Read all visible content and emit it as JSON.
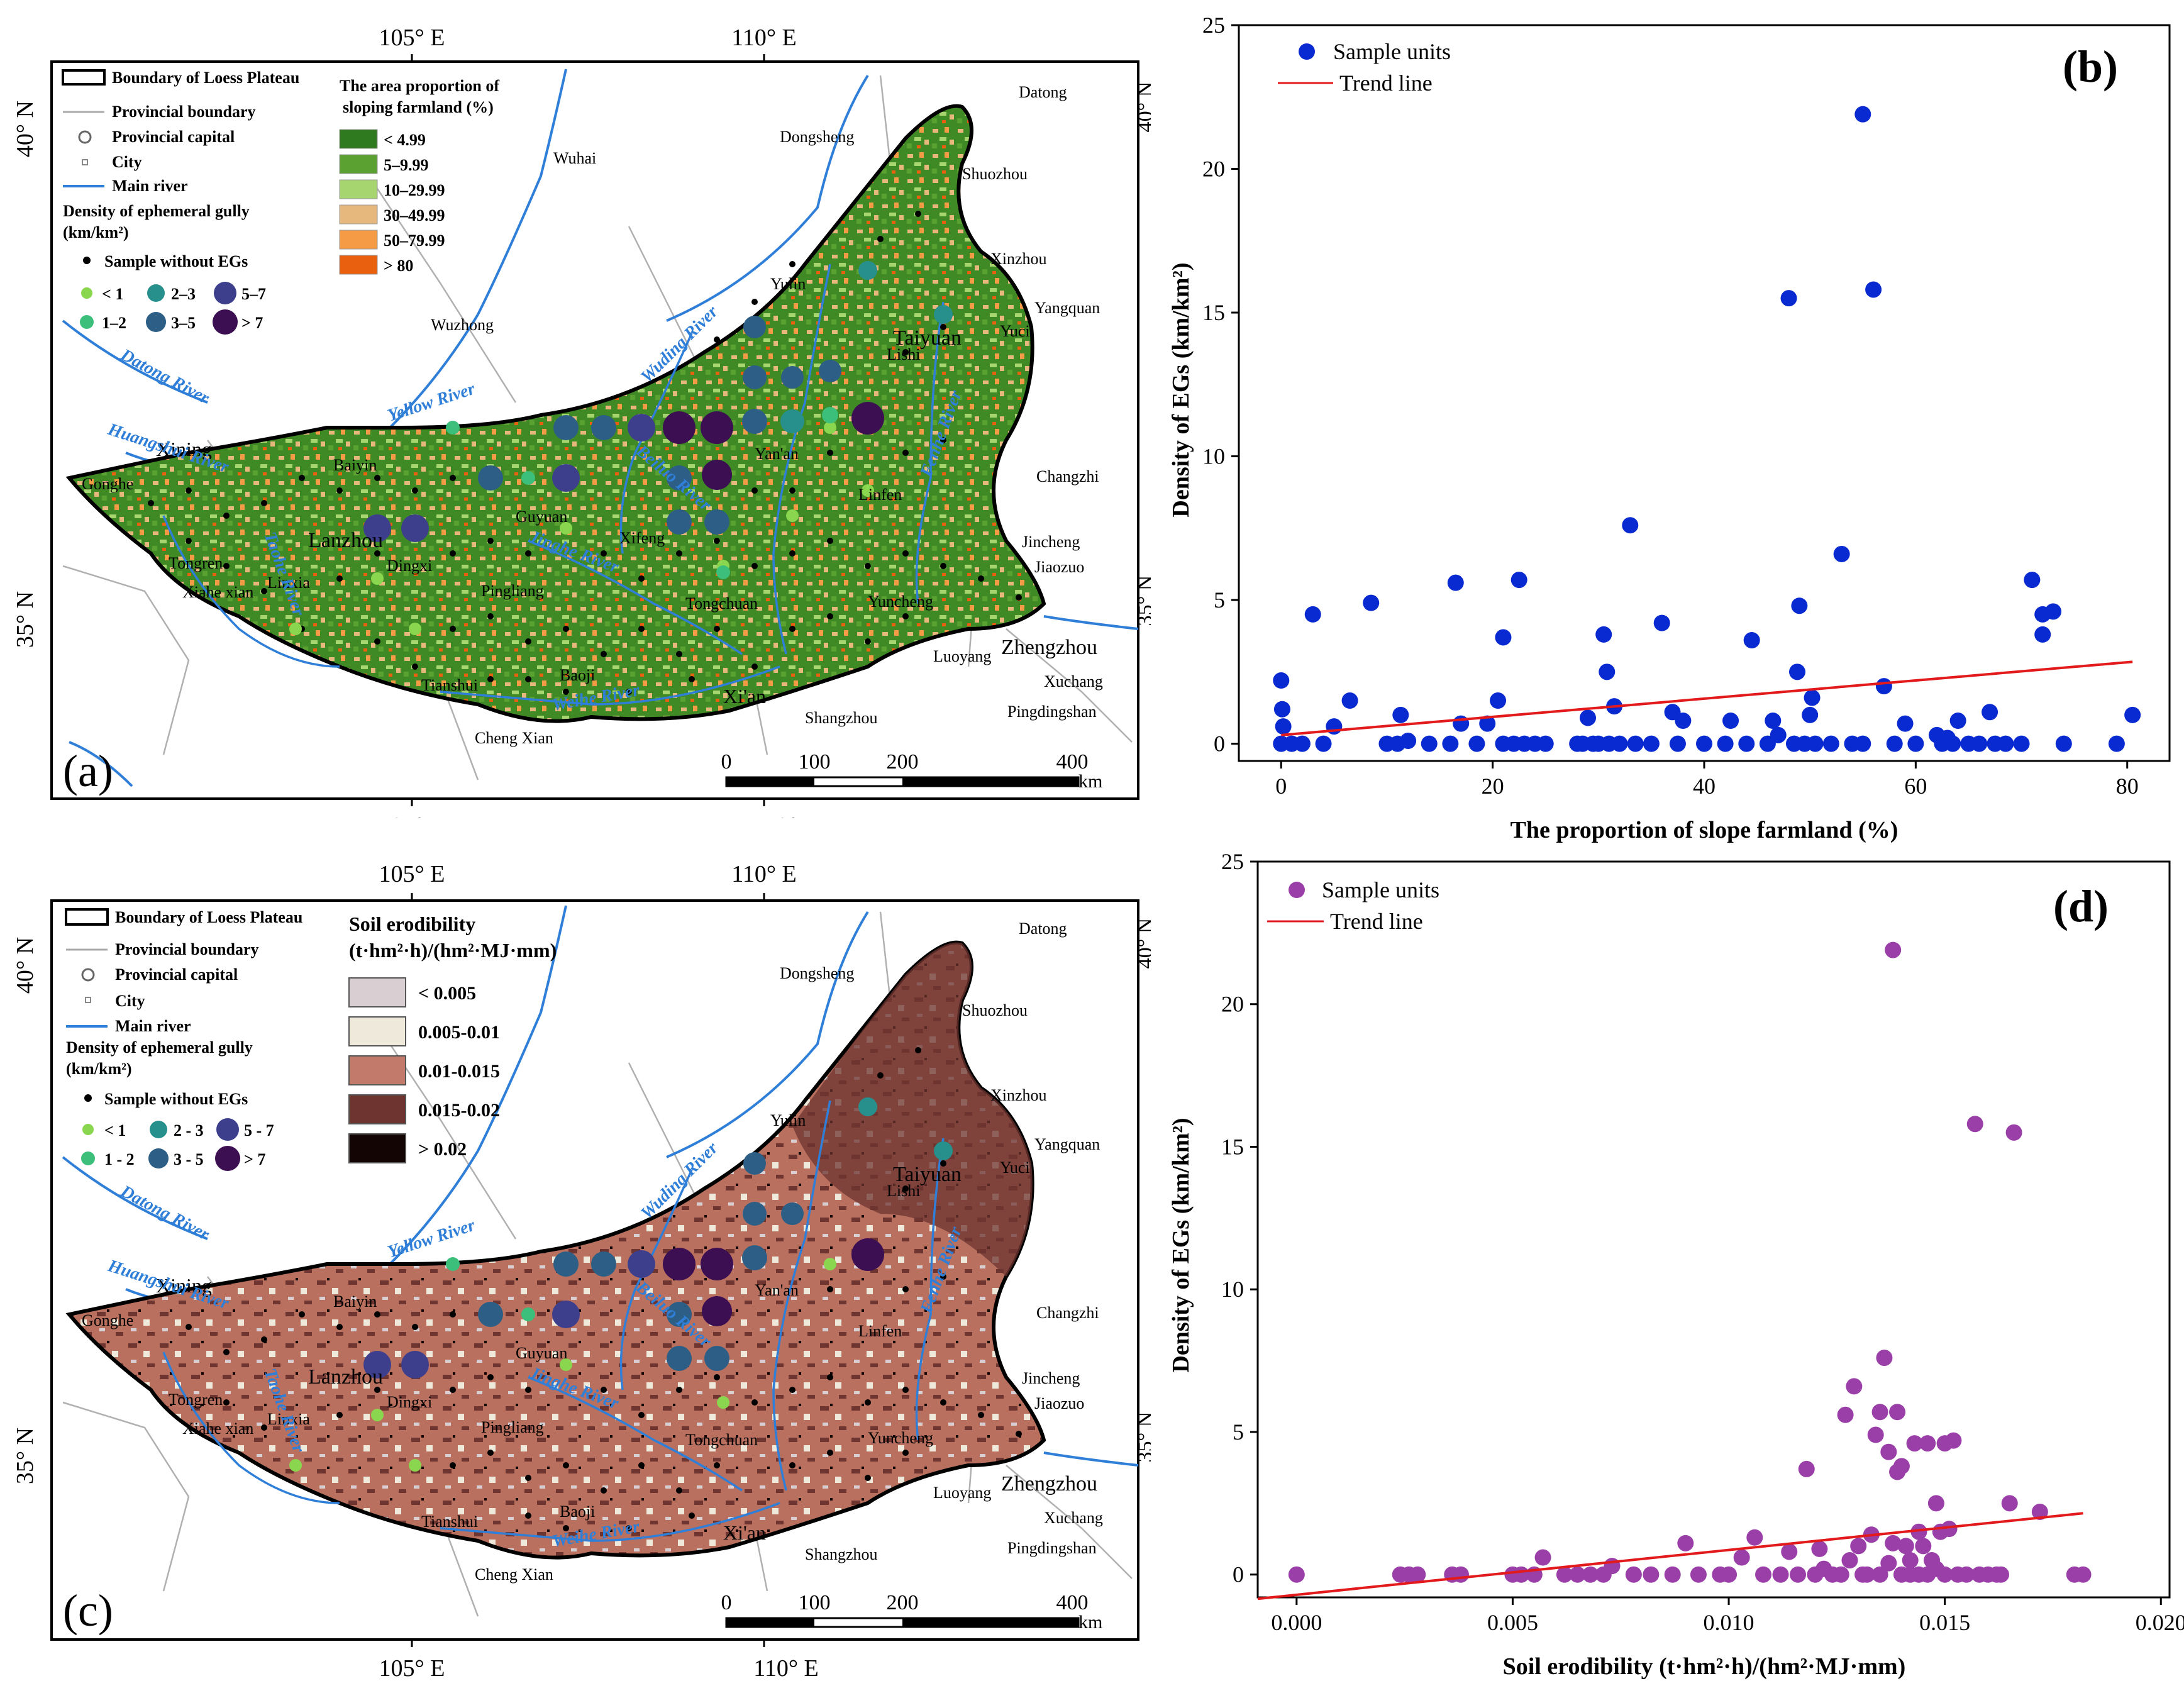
{
  "colors": {
    "green_dark": "#2f7a1f",
    "green_mid": "#5aa132",
    "green_light": "#a6d46f",
    "tan": "#e6b87e",
    "orange_light": "#f59a45",
    "orange": "#e9600f",
    "soil_0": "#d9cfd3",
    "soil_1": "#efe9db",
    "soil_2": "#c27a6b",
    "soil_3": "#6e3430",
    "soil_4": "#120503",
    "river": "#2f7fd8",
    "dot_lt1": "#8ad64e",
    "dot_1_2": "#3cbf7a",
    "dot_2_3": "#27908c",
    "dot_3_5": "#2d5f86",
    "dot_5_7": "#3d3f8c",
    "dot_gt7": "#3b0f52",
    "scatter_b": "#0a2ad1",
    "scatter_d": "#9a3fa8",
    "trend": "#e31a1c"
  },
  "map_a": {
    "label": "(a)",
    "legend": {
      "boundary": "Boundary of Loess Plateau",
      "provincial_boundary": "Provincial boundary",
      "provincial_capital": "Provincial capital",
      "city": "City",
      "main_river": "Main river",
      "density_title": "Density of ephemeral gully",
      "density_unit": "(km/km²)",
      "sample_without": "Sample without EGs",
      "classes": [
        "< 1",
        "1–2",
        "2–3",
        "3–5",
        "5–7",
        "> 7"
      ],
      "proportion_title_1": "The area proportion of",
      "proportion_title_2": "sloping farmland (%)",
      "proportion_classes": [
        "< 4.99",
        "5–9.99",
        "10–29.99",
        "30–49.99",
        "50–79.99",
        "> 80"
      ]
    },
    "lon_ticks": [
      "105° E",
      "110° E"
    ],
    "lat_ticks": [
      "40° N",
      "35° N"
    ],
    "scale": {
      "ticks": [
        "0",
        "100",
        "200",
        "400"
      ],
      "unit": "km"
    }
  },
  "map_c": {
    "label": "(c)",
    "legend": {
      "boundary": "Boundary of Loess Plateau",
      "provincial_boundary": "Provincial boundary",
      "provincial_capital": "Provincial capital",
      "city": "City",
      "main_river": "Main river",
      "density_title": "Density of ephemeral gully",
      "density_unit": "(km/km²)",
      "sample_without": "Sample without EGs",
      "classes": [
        "< 1",
        "1 - 2",
        "2 - 3",
        "3 - 5",
        "5 - 7",
        "> 7"
      ],
      "soil_title_1": "Soil erodibility",
      "soil_title_2": "(t·hm²·h)/(hm²·MJ·mm)",
      "soil_classes": [
        "< 0.005",
        "0.005-0.01",
        "0.01-0.015",
        "0.015-0.02",
        "> 0.02"
      ]
    },
    "lon_ticks": [
      "105° E",
      "110° E"
    ],
    "lat_ticks": [
      "40° N",
      "35° N"
    ],
    "scale": {
      "ticks": [
        "0",
        "100",
        "200",
        "400"
      ],
      "unit": "km"
    }
  },
  "places": {
    "Datong": "Datong",
    "Dongsheng": "Dongsheng",
    "Wuhai": "Wuhai",
    "Shuozhou": "Shuozhou",
    "Xinzhou": "Xinzhou",
    "Yangquan": "Yangquan",
    "Yuci": "Yuci",
    "Taiyuan": "Taiyuan",
    "Yulin": "Yulin",
    "Lishi": "Lishi",
    "Wuzhong": "Wuzhong",
    "Changzhi": "Changzhi",
    "Yanan": "Yan'an",
    "Linfen": "Linfen",
    "Jincheng": "Jincheng",
    "Jiaozuo": "Jiaozuo",
    "Yuncheng": "Yuncheng",
    "Zhengzhou": "Zhengzhou",
    "Luoyang": "Luoyang",
    "Xuchang": "Xuchang",
    "Pingdingshan": "Pingdingshan",
    "Shangzhou": "Shangzhou",
    "Xian": "Xi'an",
    "Baoji": "Baoji",
    "Tianshui": "Tianshui",
    "ChengXian": "Cheng Xian",
    "Tongchuan": "Tongchuan",
    "Xifeng": "Xifeng",
    "Pingliang": "Pingliang",
    "Guyuan": "Guyuan",
    "Dingxi": "Dingxi",
    "Lanzhou": "Lanzhou",
    "Baiyin": "Baiyin",
    "Xining": "Xining",
    "Gonghe": "Gonghe",
    "Tongren": "Tongren",
    "Xiahe": "Xiahe xian",
    "Linxia": "Linxia"
  },
  "rivers": {
    "Datong": "Datong River",
    "Yellow": "Yellow River",
    "Huangshui": "Huangshui River",
    "Wuding": "Wuding River",
    "Beiluo": "Beiluo River",
    "Jinghe": "Jinghe River",
    "Weihe": "Weihe River",
    "Taohe": "Taohe River",
    "Fenhe": "Fenhe River"
  },
  "chart_data": [
    {
      "id": "b",
      "type": "scatter",
      "panel_label": "(b)",
      "xlabel": "The proportion of slope farmland (%)",
      "ylabel": "Density of EGs (km/km²)",
      "xlim": [
        -4,
        84
      ],
      "ylim": [
        -0.6,
        25
      ],
      "xticks": [
        0,
        20,
        40,
        60,
        80
      ],
      "yticks": [
        0,
        5,
        10,
        15,
        20,
        25
      ],
      "legend": [
        "Sample units",
        "Trend line"
      ],
      "trend": {
        "x": [
          0,
          80.5
        ],
        "y": [
          0.3,
          2.85
        ]
      },
      "points": [
        [
          0,
          0
        ],
        [
          0.2,
          0.6
        ],
        [
          0.1,
          1.2
        ],
        [
          0,
          2.2
        ],
        [
          1,
          0
        ],
        [
          2,
          0
        ],
        [
          3,
          4.5
        ],
        [
          4,
          0
        ],
        [
          5,
          0.6
        ],
        [
          6.5,
          1.5
        ],
        [
          8.5,
          4.9
        ],
        [
          10,
          0
        ],
        [
          11,
          0
        ],
        [
          11.3,
          1
        ],
        [
          12,
          0.1
        ],
        [
          14,
          0
        ],
        [
          16,
          0
        ],
        [
          16.5,
          5.6
        ],
        [
          17,
          0.7
        ],
        [
          18.5,
          0
        ],
        [
          19.5,
          0.7
        ],
        [
          20.5,
          1.5
        ],
        [
          21,
          3.7
        ],
        [
          21,
          0
        ],
        [
          22,
          0
        ],
        [
          22.5,
          5.7
        ],
        [
          23,
          0
        ],
        [
          24,
          0
        ],
        [
          25,
          0
        ],
        [
          28,
          0
        ],
        [
          28.5,
          0
        ],
        [
          29,
          0.9
        ],
        [
          29.5,
          0
        ],
        [
          30,
          0
        ],
        [
          30.5,
          3.8
        ],
        [
          30.8,
          2.5
        ],
        [
          31,
          0
        ],
        [
          31.5,
          1.3
        ],
        [
          32,
          0
        ],
        [
          33,
          7.6
        ],
        [
          33.5,
          0
        ],
        [
          35,
          0
        ],
        [
          36,
          4.2
        ],
        [
          37,
          1.1
        ],
        [
          37.5,
          0
        ],
        [
          38,
          0.8
        ],
        [
          40,
          0
        ],
        [
          42,
          0
        ],
        [
          42.5,
          0.8
        ],
        [
          44,
          0
        ],
        [
          44.5,
          3.6
        ],
        [
          46,
          0
        ],
        [
          46.5,
          0.8
        ],
        [
          47,
          0.3
        ],
        [
          48,
          15.5
        ],
        [
          48.5,
          0
        ],
        [
          48.8,
          2.5
        ],
        [
          49,
          4.8
        ],
        [
          49.5,
          0
        ],
        [
          50,
          1
        ],
        [
          50.2,
          1.6
        ],
        [
          50.5,
          0
        ],
        [
          52,
          0
        ],
        [
          53,
          6.6
        ],
        [
          54,
          0
        ],
        [
          55,
          0
        ],
        [
          55,
          21.9
        ],
        [
          56,
          15.8
        ],
        [
          57,
          2
        ],
        [
          58,
          0
        ],
        [
          59,
          0.7
        ],
        [
          60,
          0
        ],
        [
          62,
          0.3
        ],
        [
          62.5,
          0
        ],
        [
          63,
          0.2
        ],
        [
          63.5,
          0
        ],
        [
          64,
          0.8
        ],
        [
          65,
          0
        ],
        [
          66,
          0
        ],
        [
          67,
          1.1
        ],
        [
          67.5,
          0
        ],
        [
          68.5,
          0
        ],
        [
          70,
          0
        ],
        [
          71,
          5.7
        ],
        [
          72,
          3.8
        ],
        [
          72,
          4.5
        ],
        [
          73,
          4.6
        ],
        [
          74,
          0
        ],
        [
          79,
          0
        ],
        [
          80.5,
          1
        ]
      ]
    },
    {
      "id": "d",
      "type": "scatter",
      "panel_label": "(d)",
      "xlabel": "Soil erodibility (t·hm²·h)/(hm²·MJ·mm)",
      "ylabel": "Density of EGs (km/km²)",
      "xlim": [
        -0.0009,
        0.0202
      ],
      "ylim": [
        -0.8,
        25
      ],
      "xticks": [
        0.0,
        0.005,
        0.01,
        0.015,
        0.02
      ],
      "xtick_labels": [
        "0.000",
        "0.005",
        "0.010",
        "0.015",
        "0.020"
      ],
      "yticks": [
        0,
        5,
        10,
        15,
        20,
        25
      ],
      "legend": [
        "Sample units",
        "Trend line"
      ],
      "trend": {
        "x": [
          -0.0009,
          0.0182
        ],
        "y": [
          -0.85,
          2.15
        ]
      },
      "points": [
        [
          0,
          0
        ],
        [
          0.0024,
          0
        ],
        [
          0.0026,
          0
        ],
        [
          0.0028,
          0
        ],
        [
          0.0036,
          0
        ],
        [
          0.0038,
          0
        ],
        [
          0.005,
          0
        ],
        [
          0.0052,
          0
        ],
        [
          0.0055,
          0
        ],
        [
          0.0057,
          0.6
        ],
        [
          0.0062,
          0
        ],
        [
          0.0065,
          0
        ],
        [
          0.0068,
          0
        ],
        [
          0.0071,
          0
        ],
        [
          0.0073,
          0.3
        ],
        [
          0.0078,
          0
        ],
        [
          0.0082,
          0
        ],
        [
          0.0087,
          0
        ],
        [
          0.009,
          1.1
        ],
        [
          0.0093,
          0
        ],
        [
          0.0098,
          0
        ],
        [
          0.01,
          0
        ],
        [
          0.0103,
          0.6
        ],
        [
          0.0106,
          1.3
        ],
        [
          0.0108,
          0
        ],
        [
          0.0112,
          0
        ],
        [
          0.0114,
          0.8
        ],
        [
          0.0116,
          0
        ],
        [
          0.0118,
          3.7
        ],
        [
          0.012,
          0
        ],
        [
          0.0121,
          0.9
        ],
        [
          0.0122,
          0.2
        ],
        [
          0.0124,
          0
        ],
        [
          0.0126,
          0
        ],
        [
          0.0127,
          5.6
        ],
        [
          0.0128,
          0.5
        ],
        [
          0.0129,
          6.6
        ],
        [
          0.013,
          1
        ],
        [
          0.0131,
          0
        ],
        [
          0.0132,
          0
        ],
        [
          0.0133,
          1.4
        ],
        [
          0.0134,
          4.9
        ],
        [
          0.0135,
          0
        ],
        [
          0.0135,
          5.7
        ],
        [
          0.0136,
          7.6
        ],
        [
          0.0137,
          0.4
        ],
        [
          0.0137,
          4.3
        ],
        [
          0.0138,
          21.9
        ],
        [
          0.0138,
          1.1
        ],
        [
          0.0139,
          5.7
        ],
        [
          0.0139,
          3.6
        ],
        [
          0.014,
          0
        ],
        [
          0.014,
          3.8
        ],
        [
          0.0141,
          1
        ],
        [
          0.0142,
          0
        ],
        [
          0.0142,
          0.5
        ],
        [
          0.0143,
          4.6
        ],
        [
          0.0144,
          0
        ],
        [
          0.0144,
          1.5
        ],
        [
          0.0145,
          1
        ],
        [
          0.0146,
          4.6
        ],
        [
          0.0146,
          0
        ],
        [
          0.0147,
          0.5
        ],
        [
          0.0148,
          2.5
        ],
        [
          0.0148,
          0.2
        ],
        [
          0.0149,
          1.5
        ],
        [
          0.015,
          4.6
        ],
        [
          0.015,
          0
        ],
        [
          0.0151,
          1.6
        ],
        [
          0.0152,
          4.7
        ],
        [
          0.0153,
          0
        ],
        [
          0.0155,
          0
        ],
        [
          0.0157,
          15.8
        ],
        [
          0.0158,
          0
        ],
        [
          0.016,
          0
        ],
        [
          0.0162,
          0
        ],
        [
          0.0163,
          0
        ],
        [
          0.0165,
          2.5
        ],
        [
          0.0166,
          15.5
        ],
        [
          0.0172,
          2.2
        ],
        [
          0.018,
          0
        ],
        [
          0.0182,
          0
        ]
      ]
    }
  ]
}
